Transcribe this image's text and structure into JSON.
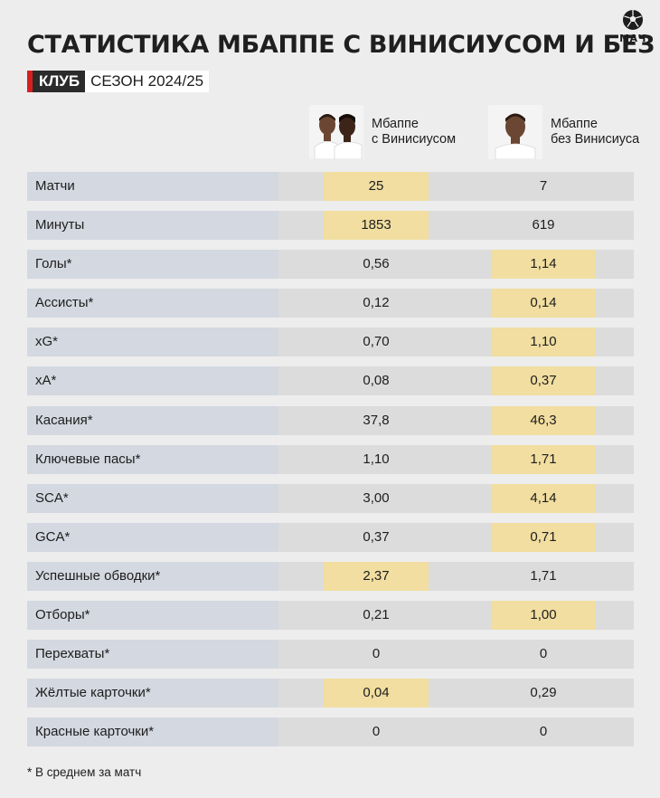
{
  "header": {
    "title": "СТАТИСТИКА МБАППЕ С ВИНИСИУСОМ И БЕЗ",
    "tag": "КЛУБ",
    "season": "СЕЗОН 2024/25"
  },
  "logo": {
    "text": "МАЧ",
    "icon": "soccer-ball-icon"
  },
  "columns": [
    {
      "line1": "Мбаппе",
      "line2": "с Винисиусом"
    },
    {
      "line1": "Мбаппе",
      "line2": "без Винисиуса"
    }
  ],
  "colors": {
    "highlight": "#f1dea0",
    "name_cell": "#d4d8e0",
    "row_bg": "#dcdcdc",
    "accent": "#d6201f"
  },
  "rows": [
    {
      "name": "Матчи",
      "v1": "25",
      "v2": "7",
      "hl": 1
    },
    {
      "name": "Минуты",
      "v1": "1853",
      "v2": "619",
      "hl": 1
    },
    {
      "name": "Голы*",
      "v1": "0,56",
      "v2": "1,14",
      "hl": 2
    },
    {
      "name": "Ассисты*",
      "v1": "0,12",
      "v2": "0,14",
      "hl": 2
    },
    {
      "name": "xG*",
      "v1": "0,70",
      "v2": "1,10",
      "hl": 2
    },
    {
      "name": "xA*",
      "v1": "0,08",
      "v2": "0,37",
      "hl": 2
    },
    {
      "name": "Касания*",
      "v1": "37,8",
      "v2": "46,3",
      "hl": 2
    },
    {
      "name": "Ключевые пасы*",
      "v1": "1,10",
      "v2": "1,71",
      "hl": 2
    },
    {
      "name": "SCA*",
      "v1": "3,00",
      "v2": "4,14",
      "hl": 2
    },
    {
      "name": "GCA*",
      "v1": "0,37",
      "v2": "0,71",
      "hl": 2
    },
    {
      "name": "Успешные обводки*",
      "v1": "2,37",
      "v2": "1,71",
      "hl": 1
    },
    {
      "name": "Отборы*",
      "v1": "0,21",
      "v2": "1,00",
      "hl": 2
    },
    {
      "name": "Перехваты*",
      "v1": "0",
      "v2": "0",
      "hl": 0
    },
    {
      "name": "Жёлтые карточки*",
      "v1": "0,04",
      "v2": "0,29",
      "hl": 1
    },
    {
      "name": "Красные карточки*",
      "v1": "0",
      "v2": "0",
      "hl": 0
    }
  ],
  "footnote": "* В среднем за матч"
}
